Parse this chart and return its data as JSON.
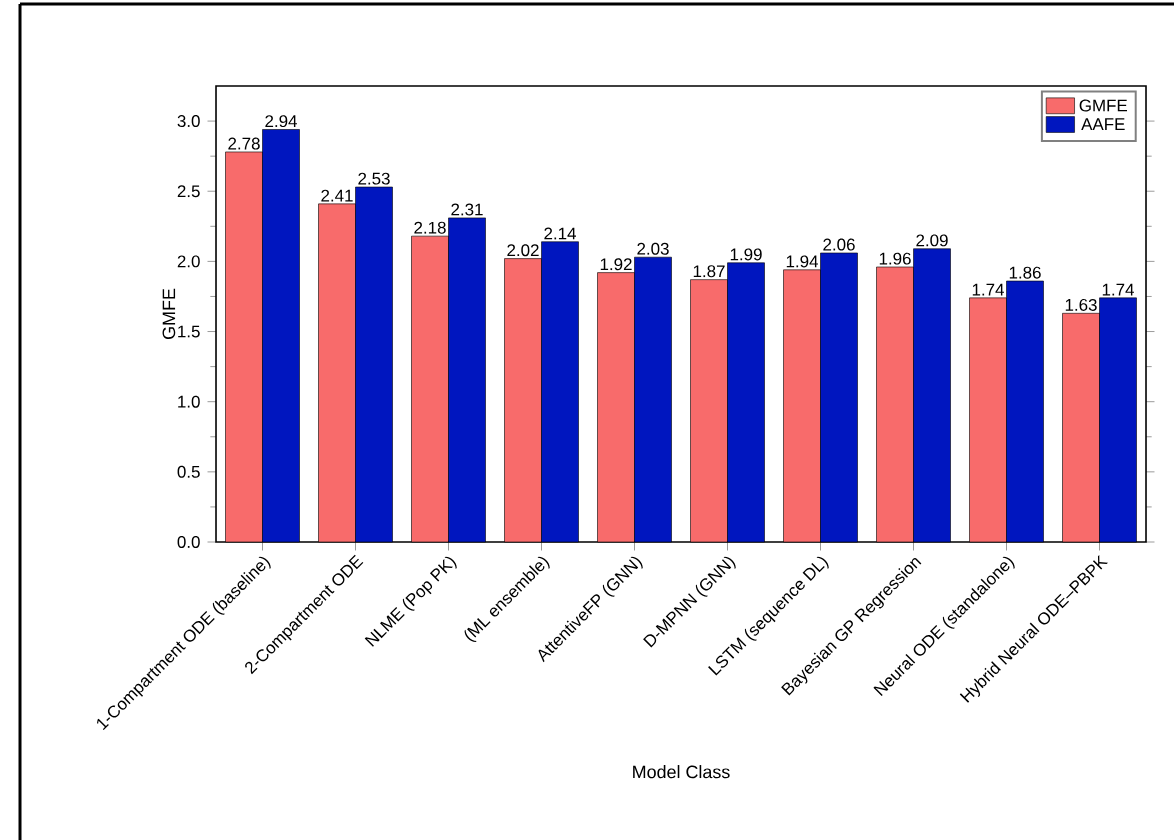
{
  "chart_data": {
    "type": "bar",
    "xlabel": "Model Class",
    "ylabel": "GMFE",
    "categories": [
      "1-Compartment ODE (baseline)",
      "2-Compartment ODE",
      "NLME (Pop PK)",
      "(ML ensemble)",
      "AttentiveFP (GNN)",
      "D-MPNN (GNN)",
      "LSTM (sequence DL)",
      "Bayesian GP Regression",
      "Neural ODE (standalone)",
      "Hybrid Neural ODE–PBPK"
    ],
    "series": [
      {
        "name": "GMFE",
        "color": "#f86b6b",
        "values": [
          2.78,
          2.41,
          2.18,
          2.02,
          1.92,
          1.87,
          1.94,
          1.96,
          1.74,
          1.63
        ]
      },
      {
        "name": "AAFE",
        "color": "#0016bf",
        "values": [
          2.94,
          2.53,
          2.31,
          2.14,
          2.03,
          1.99,
          2.06,
          2.09,
          1.86,
          1.74
        ]
      }
    ],
    "ylim": [
      0,
      3.25
    ],
    "yticks": [
      {
        "value": 0,
        "label": "0.0"
      },
      {
        "value": 0.5,
        "label": "0.5"
      },
      {
        "value": 1,
        "label": "1.0"
      },
      {
        "value": 1.5,
        "label": "1.5"
      },
      {
        "value": 2,
        "label": "2.0"
      },
      {
        "value": 2.5,
        "label": "2.5"
      },
      {
        "value": 3,
        "label": "3.0"
      }
    ],
    "grid": false,
    "legend": "top right",
    "data_labels": true
  }
}
